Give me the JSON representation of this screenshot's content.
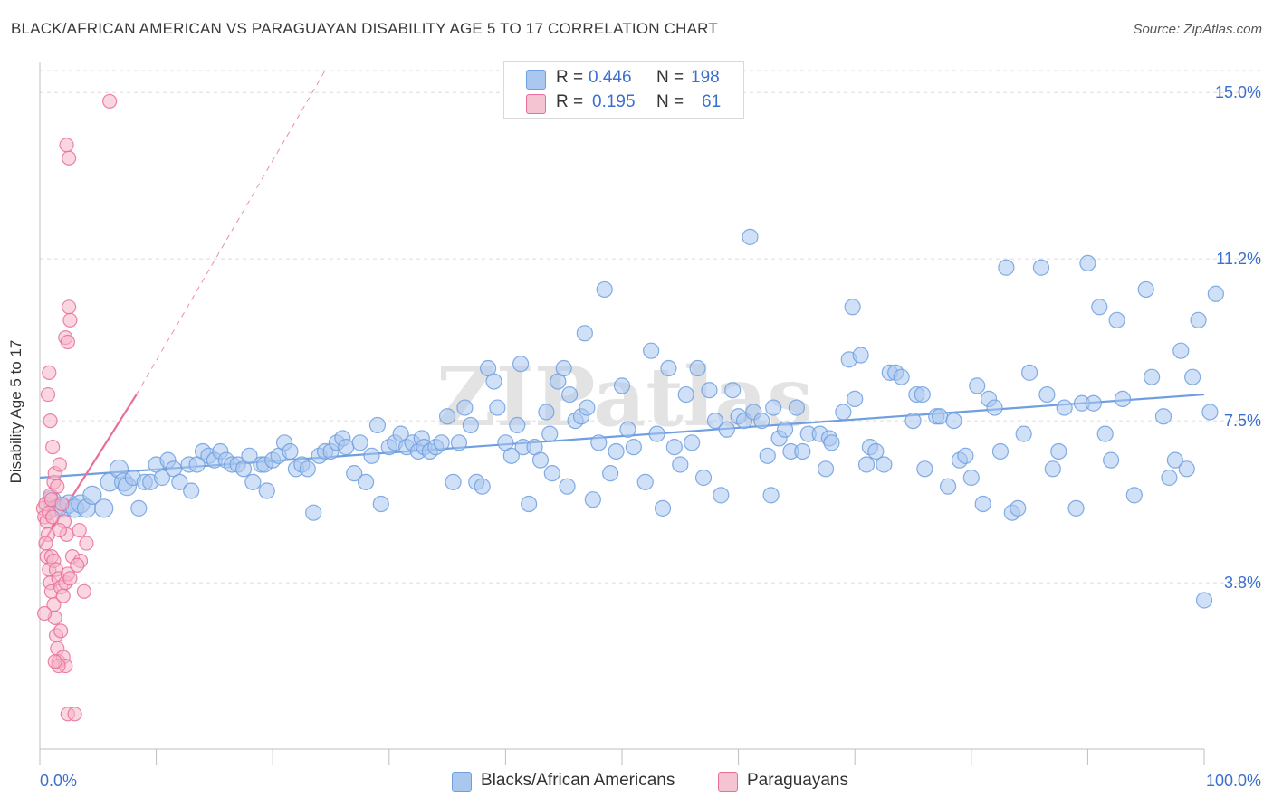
{
  "title": "BLACK/AFRICAN AMERICAN VS PARAGUAYAN DISABILITY AGE 5 TO 17 CORRELATION CHART",
  "source": "Source: ZipAtlas.com",
  "watermark": "ZIPatlas",
  "legend": {
    "rows": [
      {
        "r_label": "R =",
        "r_value": "0.446",
        "n_label": "N =",
        "n_value": "198",
        "color": "#a9c7ef"
      },
      {
        "r_label": "R =",
        "r_value": "0.195",
        "n_label": "N =",
        "n_value": "61",
        "color": "#f5b5c8"
      }
    ]
  },
  "bottom_legend": [
    {
      "label": "Blacks/African Americans",
      "color": "#a9c7ef"
    },
    {
      "label": "Paraguayans",
      "color": "#f5b5c8"
    }
  ],
  "chart_data": {
    "type": "scatter",
    "title": "BLACK/AFRICAN AMERICAN VS PARAGUAYAN DISABILITY AGE 5 TO 17 CORRELATION CHART",
    "xlabel": "",
    "ylabel": "Disability Age 5 to 17",
    "xlim": [
      0,
      100
    ],
    "ylim": [
      0,
      15.5
    ],
    "x_tick_labels": [
      "0.0%",
      "100.0%"
    ],
    "y_ticks": [
      3.8,
      7.5,
      11.2,
      15.0
    ],
    "y_tick_labels": [
      "3.8%",
      "7.5%",
      "11.2%",
      "15.0%"
    ],
    "grid": true,
    "legend_position": "top-center",
    "series": [
      {
        "name": "Blacks/African Americans",
        "color": "#6f9fe0",
        "fill": "#a9c7ef",
        "trend": {
          "x0": 0,
          "y0": 6.2,
          "x1": 100,
          "y1": 8.1
        },
        "points": [
          [
            1,
            5.7
          ],
          [
            1.5,
            5.5
          ],
          [
            2,
            5.5
          ],
          [
            2.5,
            5.6
          ],
          [
            3,
            5.5
          ],
          [
            3.5,
            5.6
          ],
          [
            4,
            5.5
          ],
          [
            4.5,
            5.8
          ],
          [
            5.5,
            5.5
          ],
          [
            6,
            6.1
          ],
          [
            6.8,
            6.4
          ],
          [
            7.2,
            6.1
          ],
          [
            7.5,
            6.0
          ],
          [
            8,
            6.2
          ],
          [
            8.5,
            5.5
          ],
          [
            9,
            6.1
          ],
          [
            9.5,
            6.1
          ],
          [
            10,
            6.5
          ],
          [
            10.5,
            6.2
          ],
          [
            11,
            6.6
          ],
          [
            11.5,
            6.4
          ],
          [
            12,
            6.1
          ],
          [
            12.8,
            6.5
          ],
          [
            13,
            5.9
          ],
          [
            13.5,
            6.5
          ],
          [
            14,
            6.8
          ],
          [
            14.5,
            6.7
          ],
          [
            15,
            6.6
          ],
          [
            15.5,
            6.8
          ],
          [
            16,
            6.6
          ],
          [
            16.5,
            6.5
          ],
          [
            17,
            6.5
          ],
          [
            17.5,
            6.4
          ],
          [
            18,
            6.7
          ],
          [
            18.3,
            6.1
          ],
          [
            19,
            6.5
          ],
          [
            19.3,
            6.5
          ],
          [
            19.5,
            5.9
          ],
          [
            20,
            6.6
          ],
          [
            20.5,
            6.7
          ],
          [
            21,
            7.0
          ],
          [
            21.5,
            6.8
          ],
          [
            22,
            6.4
          ],
          [
            22.5,
            6.5
          ],
          [
            23,
            6.4
          ],
          [
            23.5,
            5.4
          ],
          [
            24,
            6.7
          ],
          [
            24.5,
            6.8
          ],
          [
            25,
            6.8
          ],
          [
            25.5,
            7.0
          ],
          [
            26,
            7.1
          ],
          [
            26.3,
            6.9
          ],
          [
            27,
            6.3
          ],
          [
            27.5,
            7.0
          ],
          [
            28,
            6.1
          ],
          [
            28.5,
            6.7
          ],
          [
            29,
            7.4
          ],
          [
            29.3,
            5.6
          ],
          [
            30,
            6.9
          ],
          [
            30.5,
            7.0
          ],
          [
            31,
            7.2
          ],
          [
            31.5,
            6.9
          ],
          [
            32,
            7.0
          ],
          [
            32.5,
            6.8
          ],
          [
            32.8,
            7.1
          ],
          [
            33,
            6.9
          ],
          [
            33.5,
            6.8
          ],
          [
            34,
            6.9
          ],
          [
            34.5,
            7.0
          ],
          [
            35,
            7.6
          ],
          [
            35.5,
            6.1
          ],
          [
            36,
            7.0
          ],
          [
            36.5,
            7.8
          ],
          [
            37,
            7.4
          ],
          [
            37.5,
            6.1
          ],
          [
            38,
            6.0
          ],
          [
            38.5,
            8.7
          ],
          [
            39,
            8.4
          ],
          [
            39.3,
            7.8
          ],
          [
            40,
            7.0
          ],
          [
            40.5,
            6.7
          ],
          [
            41,
            7.4
          ],
          [
            41.3,
            8.8
          ],
          [
            41.5,
            6.9
          ],
          [
            42,
            5.6
          ],
          [
            42.5,
            6.9
          ],
          [
            43,
            6.6
          ],
          [
            43.5,
            7.7
          ],
          [
            43.8,
            7.2
          ],
          [
            44,
            6.3
          ],
          [
            44.5,
            8.4
          ],
          [
            45,
            8.7
          ],
          [
            45.3,
            6.0
          ],
          [
            45.5,
            8.1
          ],
          [
            46,
            7.5
          ],
          [
            46.5,
            7.6
          ],
          [
            46.8,
            9.5
          ],
          [
            47,
            7.8
          ],
          [
            47.5,
            5.7
          ],
          [
            48,
            7.0
          ],
          [
            48.5,
            10.5
          ],
          [
            49,
            6.3
          ],
          [
            49.5,
            6.8
          ],
          [
            50,
            8.3
          ],
          [
            50.5,
            7.3
          ],
          [
            51,
            6.9
          ],
          [
            52,
            6.1
          ],
          [
            52.5,
            9.1
          ],
          [
            53,
            7.2
          ],
          [
            53.5,
            5.5
          ],
          [
            54,
            8.7
          ],
          [
            54.5,
            6.9
          ],
          [
            55,
            6.5
          ],
          [
            55.5,
            8.1
          ],
          [
            56,
            7.0
          ],
          [
            56.5,
            8.7
          ],
          [
            57,
            6.2
          ],
          [
            57.5,
            8.2
          ],
          [
            58,
            7.5
          ],
          [
            58.5,
            5.8
          ],
          [
            59,
            7.3
          ],
          [
            59.5,
            8.2
          ],
          [
            60,
            7.6
          ],
          [
            60.5,
            7.5
          ],
          [
            61,
            11.7
          ],
          [
            61.3,
            7.7
          ],
          [
            62,
            7.5
          ],
          [
            62.5,
            6.7
          ],
          [
            62.8,
            5.8
          ],
          [
            63,
            7.8
          ],
          [
            63.5,
            7.1
          ],
          [
            64,
            7.3
          ],
          [
            64.5,
            6.8
          ],
          [
            65,
            7.8
          ],
          [
            65.5,
            6.8
          ],
          [
            66,
            7.2
          ],
          [
            67,
            7.2
          ],
          [
            67.5,
            6.4
          ],
          [
            67.8,
            7.1
          ],
          [
            68,
            7.0
          ],
          [
            69,
            7.7
          ],
          [
            69.5,
            8.9
          ],
          [
            69.8,
            10.1
          ],
          [
            70,
            8.0
          ],
          [
            70.5,
            9.0
          ],
          [
            71,
            6.5
          ],
          [
            71.3,
            6.9
          ],
          [
            71.8,
            6.8
          ],
          [
            72.5,
            6.5
          ],
          [
            73,
            8.6
          ],
          [
            73.5,
            8.6
          ],
          [
            74,
            8.5
          ],
          [
            75,
            7.5
          ],
          [
            75.3,
            8.1
          ],
          [
            75.8,
            8.1
          ],
          [
            76,
            6.4
          ],
          [
            77,
            7.6
          ],
          [
            77.3,
            7.6
          ],
          [
            78,
            6.0
          ],
          [
            78.5,
            7.5
          ],
          [
            79,
            6.6
          ],
          [
            79.5,
            6.7
          ],
          [
            80,
            6.2
          ],
          [
            80.5,
            8.3
          ],
          [
            81,
            5.6
          ],
          [
            81.5,
            8.0
          ],
          [
            82,
            7.8
          ],
          [
            82.5,
            6.8
          ],
          [
            83,
            11.0
          ],
          [
            83.5,
            5.4
          ],
          [
            84,
            5.5
          ],
          [
            84.5,
            7.2
          ],
          [
            85,
            8.6
          ],
          [
            86,
            11.0
          ],
          [
            86.5,
            8.1
          ],
          [
            87,
            6.4
          ],
          [
            87.5,
            6.8
          ],
          [
            88,
            7.8
          ],
          [
            89,
            5.5
          ],
          [
            89.5,
            7.9
          ],
          [
            90,
            11.1
          ],
          [
            90.5,
            7.9
          ],
          [
            91,
            10.1
          ],
          [
            91.5,
            7.2
          ],
          [
            92,
            6.6
          ],
          [
            92.5,
            9.8
          ],
          [
            93,
            8.0
          ],
          [
            94,
            5.8
          ],
          [
            95,
            10.5
          ],
          [
            95.5,
            8.5
          ],
          [
            96.5,
            7.6
          ],
          [
            97,
            6.2
          ],
          [
            97.5,
            6.6
          ],
          [
            98,
            9.1
          ],
          [
            98.5,
            6.4
          ],
          [
            99,
            8.5
          ],
          [
            99.5,
            9.8
          ],
          [
            100,
            3.4
          ],
          [
            100.5,
            7.7
          ],
          [
            101,
            10.4
          ]
        ]
      },
      {
        "name": "Paraguayans",
        "color": "#e96f99",
        "fill": "#f5b5c8",
        "trend": {
          "x0": 0,
          "y0": 4.6,
          "x1": 8.3,
          "y1": 8.1
        },
        "trend_extension": {
          "x0": 8.3,
          "y0": 8.1,
          "x1": 24.5,
          "y1": 15.5
        },
        "points": [
          [
            0.3,
            5.5
          ],
          [
            0.4,
            5.3
          ],
          [
            0.5,
            5.6
          ],
          [
            0.6,
            5.2
          ],
          [
            0.7,
            4.9
          ],
          [
            0.8,
            5.4
          ],
          [
            0.9,
            5.8
          ],
          [
            1.0,
            5.7
          ],
          [
            1.1,
            5.3
          ],
          [
            1.2,
            6.1
          ],
          [
            0.5,
            4.7
          ],
          [
            0.6,
            4.4
          ],
          [
            0.8,
            4.1
          ],
          [
            0.9,
            3.8
          ],
          [
            1.0,
            3.6
          ],
          [
            1.2,
            3.3
          ],
          [
            1.3,
            3.0
          ],
          [
            1.4,
            2.6
          ],
          [
            1.5,
            2.3
          ],
          [
            1.6,
            2.0
          ],
          [
            0.7,
            8.1
          ],
          [
            0.8,
            8.6
          ],
          [
            0.9,
            7.5
          ],
          [
            1.1,
            6.9
          ],
          [
            1.3,
            6.3
          ],
          [
            1.5,
            6.0
          ],
          [
            1.7,
            6.5
          ],
          [
            1.9,
            5.6
          ],
          [
            2.1,
            5.2
          ],
          [
            2.3,
            4.9
          ],
          [
            1.0,
            4.4
          ],
          [
            1.2,
            4.3
          ],
          [
            1.4,
            4.1
          ],
          [
            1.6,
            3.9
          ],
          [
            1.8,
            3.7
          ],
          [
            2.0,
            3.5
          ],
          [
            2.2,
            3.8
          ],
          [
            2.4,
            4.0
          ],
          [
            2.6,
            3.9
          ],
          [
            2.8,
            4.4
          ],
          [
            2.2,
            9.4
          ],
          [
            2.4,
            9.3
          ],
          [
            2.5,
            10.1
          ],
          [
            2.6,
            9.8
          ],
          [
            2.3,
            13.8
          ],
          [
            2.5,
            13.5
          ],
          [
            6.0,
            14.8
          ],
          [
            1.8,
            2.7
          ],
          [
            2.0,
            2.1
          ],
          [
            2.2,
            1.9
          ],
          [
            1.6,
            1.9
          ],
          [
            2.4,
            0.8
          ],
          [
            3.0,
            0.8
          ],
          [
            3.5,
            4.3
          ],
          [
            3.2,
            4.2
          ],
          [
            3.8,
            3.6
          ],
          [
            4.0,
            4.7
          ],
          [
            1.7,
            5.0
          ],
          [
            3.4,
            5.0
          ],
          [
            0.4,
            3.1
          ],
          [
            1.3,
            2.0
          ]
        ]
      }
    ]
  }
}
